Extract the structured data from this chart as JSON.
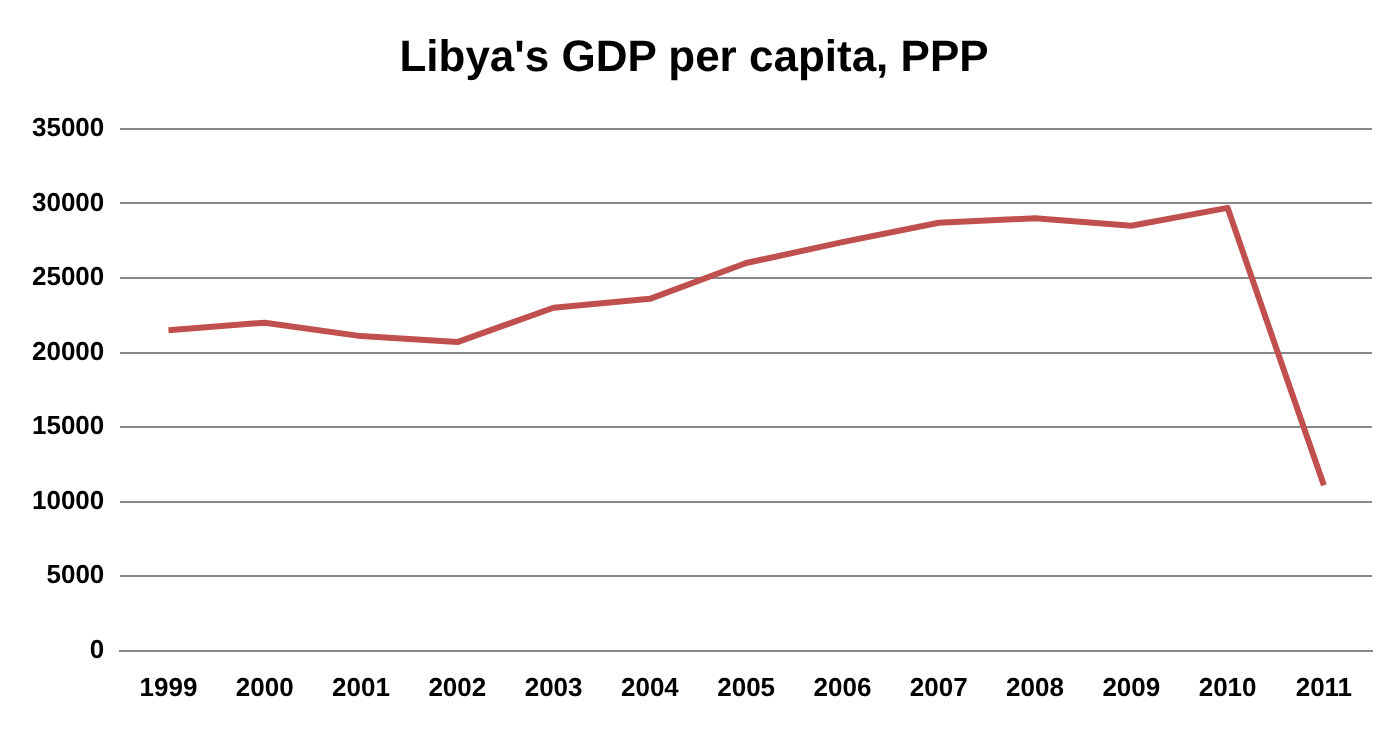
{
  "chart_data": {
    "type": "line",
    "title": "Libya's GDP per capita, PPP",
    "categories": [
      "1999",
      "2000",
      "2001",
      "2002",
      "2003",
      "2004",
      "2005",
      "2006",
      "2007",
      "2008",
      "2009",
      "2010",
      "2011"
    ],
    "series": [
      {
        "color": "#c0504d",
        "values": [
          21500,
          22000,
          21100,
          20700,
          23000,
          23600,
          26000,
          27400,
          28700,
          29000,
          28500,
          29700,
          11100
        ]
      }
    ],
    "ylim": [
      0,
      35000
    ],
    "yticks": [
      0,
      5000,
      10000,
      15000,
      20000,
      25000,
      30000,
      35000
    ],
    "grid": "y",
    "legend": false,
    "marker": "none",
    "line_style": "solid"
  }
}
